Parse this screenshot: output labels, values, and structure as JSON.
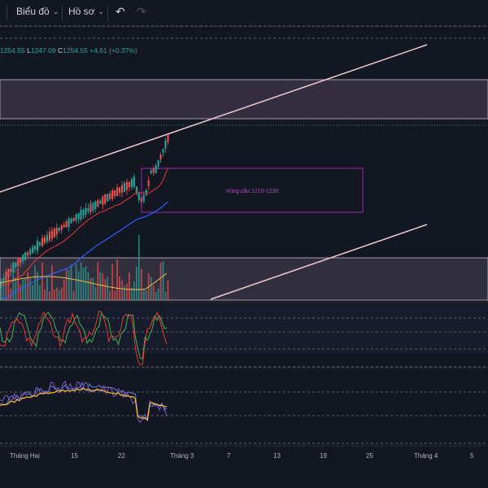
{
  "toolbar": {
    "chart_menu": "Biểu đồ",
    "profile_menu": "Hồ sơ",
    "undo_icon": "undo-icon",
    "redo_icon": "redo-icon"
  },
  "legend": {
    "open_value": "1254.55",
    "low_label": "L",
    "low_value": "1247.09",
    "close_label": "C",
    "close_value": "1254.55",
    "change_value": "+4.61 (+0.37%)"
  },
  "zone_label": "Vùng cầu 1210-1230",
  "x_axis": [
    "Tháng Hai",
    "15",
    "22",
    "Tháng 3",
    "7",
    "13",
    "19",
    "25",
    "Tháng 4",
    "5"
  ],
  "colors": {
    "background": "#131722",
    "bull": "#26a69a",
    "bear": "#ef5350",
    "channel": "#f0c8d0",
    "zone": "#9c27b0",
    "ma_red": "#e53935",
    "ma_blue": "#2962ff"
  }
}
